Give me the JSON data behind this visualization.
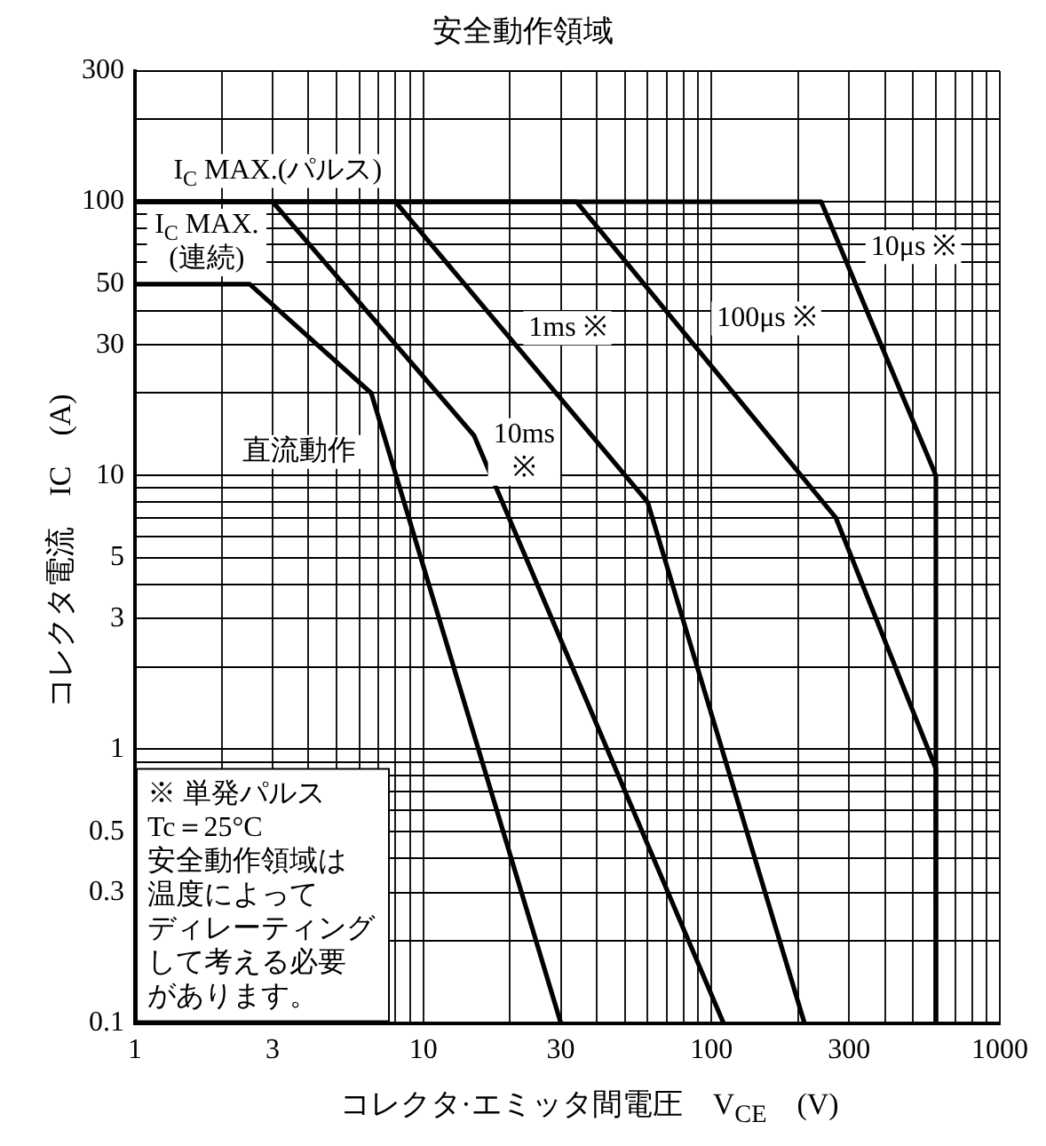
{
  "chart_data": {
    "type": "line",
    "title": "安全動作領域",
    "xlabel": "コレクタ·エミッタ間電圧　V$_{CE}$　(V)",
    "ylabel": "コレクタ電流　IC　(A)",
    "log": "xy",
    "grid": true,
    "legend": false,
    "marker": "none",
    "line_style": "solid",
    "xlim": [
      1,
      1000
    ],
    "ylim": [
      0.1,
      300
    ],
    "xticks": [
      1,
      {
        "value": 2,
        "label": null
      },
      3,
      {
        "value": 4,
        "label": null
      },
      {
        "value": 5,
        "label": null
      },
      {
        "value": 6,
        "label": null
      },
      {
        "value": 7,
        "label": null
      },
      {
        "value": 8,
        "label": null
      },
      {
        "value": 9,
        "label": null
      },
      10,
      {
        "value": 20,
        "label": null
      },
      30,
      {
        "value": 40,
        "label": null
      },
      {
        "value": 50,
        "label": null
      },
      {
        "value": 60,
        "label": null
      },
      {
        "value": 70,
        "label": null
      },
      {
        "value": 80,
        "label": null
      },
      {
        "value": 90,
        "label": null
      },
      100,
      {
        "value": 200,
        "label": null
      },
      300,
      {
        "value": 400,
        "label": null
      },
      {
        "value": 500,
        "label": null
      },
      {
        "value": 600,
        "label": null
      },
      {
        "value": 700,
        "label": null
      },
      {
        "value": 800,
        "label": null
      },
      {
        "value": 900,
        "label": null
      },
      1000
    ],
    "yticks": [
      0.1,
      {
        "value": 0.2,
        "label": null
      },
      0.3,
      {
        "value": 0.4,
        "label": null
      },
      0.5,
      {
        "value": 0.6,
        "label": null
      },
      {
        "value": 0.7,
        "label": null
      },
      {
        "value": 0.8,
        "label": null
      },
      {
        "value": 0.9,
        "label": null
      },
      1,
      {
        "value": 2,
        "label": null
      },
      3,
      {
        "value": 4,
        "label": null
      },
      5,
      {
        "value": 6,
        "label": null
      },
      {
        "value": 7,
        "label": null
      },
      {
        "value": 8,
        "label": null
      },
      {
        "value": 9,
        "label": null
      },
      10,
      {
        "value": 20,
        "label": null
      },
      30,
      {
        "value": 40,
        "label": null
      },
      50,
      {
        "value": 60,
        "label": null
      },
      {
        "value": 70,
        "label": null
      },
      {
        "value": 80,
        "label": null
      },
      {
        "value": 90,
        "label": null
      },
      100,
      {
        "value": 200,
        "label": null
      },
      300
    ],
    "series": [
      {
        "name": "直流動作",
        "color": "#000000",
        "x": [
          1,
          2.5,
          6.6,
          30
        ],
        "values": [
          50,
          50,
          20,
          0.1
        ]
      },
      {
        "name": "10ms ※",
        "color": "#000000",
        "x": [
          1,
          3,
          15,
          110
        ],
        "values": [
          100,
          100,
          14,
          0.1
        ]
      },
      {
        "name": "1ms ※",
        "color": "#000000",
        "x": [
          1,
          8,
          60,
          210
        ],
        "values": [
          100,
          100,
          8,
          0.1
        ]
      },
      {
        "name": "100μs ※",
        "color": "#000000",
        "x": [
          1,
          34,
          270,
          600,
          600
        ],
        "values": [
          100,
          100,
          7,
          0.85,
          0.1
        ]
      },
      {
        "name": "10μs ※",
        "color": "#000000",
        "x": [
          1,
          240,
          600,
          600
        ],
        "values": [
          100,
          100,
          10,
          0.1
        ]
      }
    ],
    "annotations": [
      "I$_{C}$ MAX.(パルス)",
      "I$_{C}$ MAX.(連続)",
      "※ 単発パルス",
      "Tc＝25°C",
      "安全動作領域は温度によってディレーティングして考える必要があります。"
    ]
  }
}
